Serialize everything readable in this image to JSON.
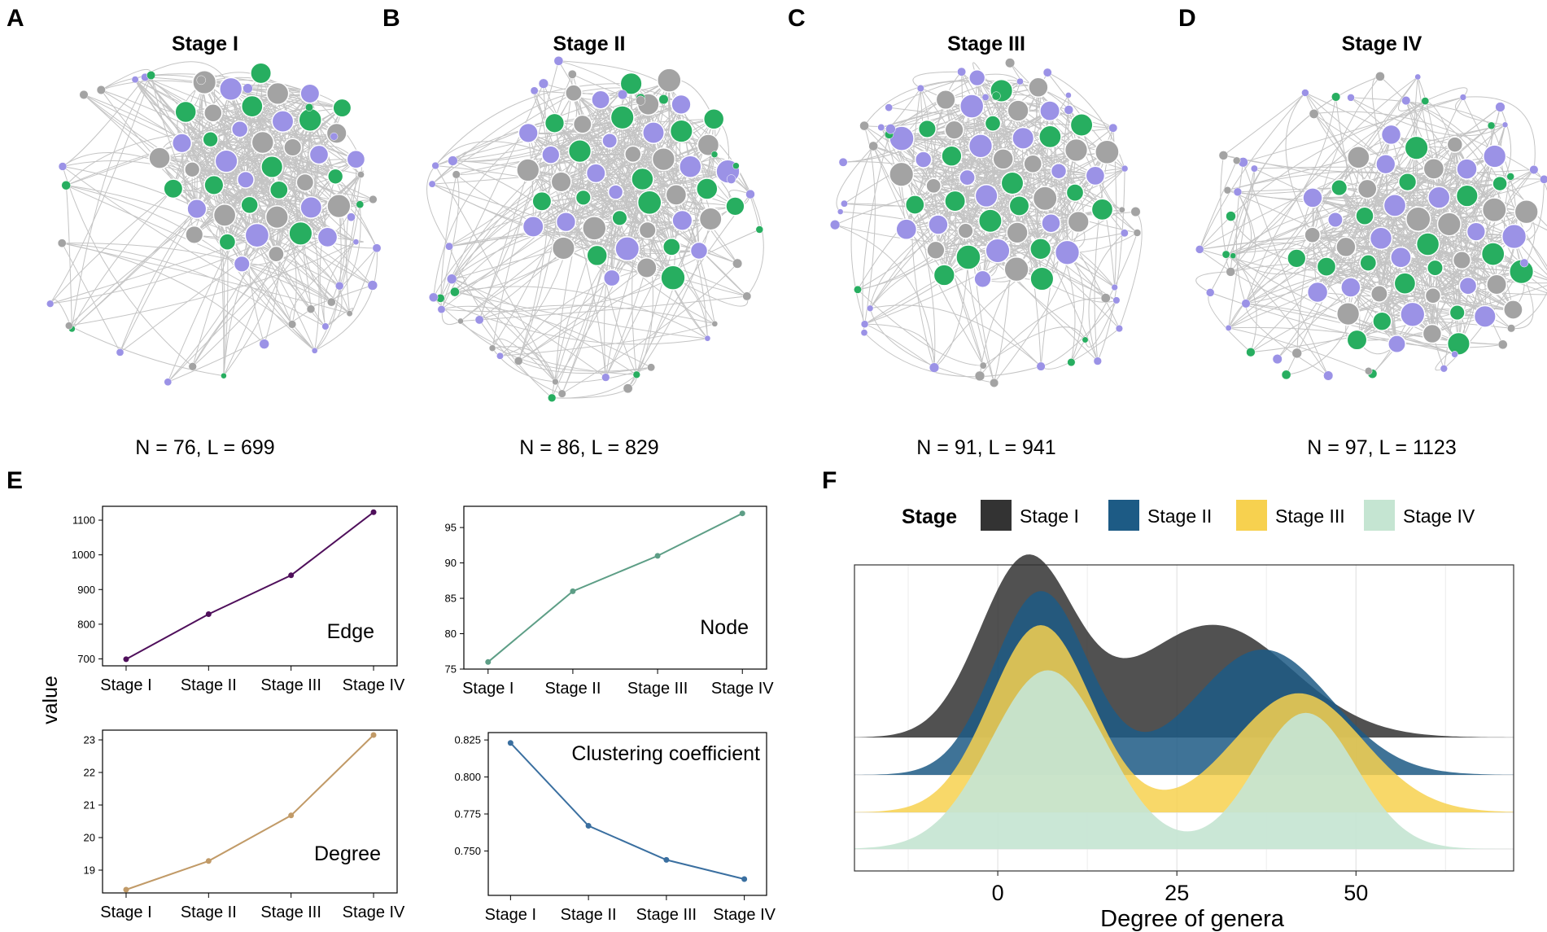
{
  "panel_labels": {
    "A": "A",
    "B": "B",
    "C": "C",
    "D": "D",
    "E": "E",
    "F": "F"
  },
  "networks": [
    {
      "title": "Stage I",
      "nl_label": "N = 76, L = 699",
      "N": 76,
      "L": 699
    },
    {
      "title": "Stage II",
      "nl_label": "N = 86, L = 829",
      "N": 86,
      "L": 829
    },
    {
      "title": "Stage III",
      "nl_label": "N = 91, L = 941",
      "N": 91,
      "L": 941
    },
    {
      "title": "Stage IV",
      "nl_label": "N = 97, L = 1123",
      "N": 97,
      "L": 1123
    }
  ],
  "node_colors": {
    "green": "#27ae60",
    "purple": "#9b92e6",
    "gray": "#a3a3a3"
  },
  "panel_e": {
    "ylabel": "value"
  },
  "chart_data": [
    {
      "type": "line",
      "metric": "Edge",
      "categories": [
        "Stage I",
        "Stage II",
        "Stage III",
        "Stage IV"
      ],
      "values": [
        699,
        829,
        941,
        1123
      ],
      "ylim": [
        680,
        1140
      ],
      "yticks": [
        700,
        800,
        900,
        1000,
        1100
      ],
      "yticklabels": [
        "700",
        "800",
        "900",
        "1000",
        "1100"
      ],
      "color": "#4f0f5b"
    },
    {
      "type": "line",
      "metric": "Node",
      "categories": [
        "Stage I",
        "Stage II",
        "Stage III",
        "Stage IV"
      ],
      "values": [
        76,
        86,
        91,
        97
      ],
      "ylim": [
        75,
        98
      ],
      "yticks": [
        75,
        80,
        85,
        90,
        95
      ],
      "yticklabels": [
        "75",
        "80",
        "85",
        "90",
        "95"
      ],
      "color": "#5d9e86"
    },
    {
      "type": "line",
      "metric": "Degree",
      "categories": [
        "Stage I",
        "Stage II",
        "Stage III",
        "Stage IV"
      ],
      "values": [
        18.4,
        19.28,
        20.68,
        23.15
      ],
      "ylim": [
        18.3,
        23.3
      ],
      "yticks": [
        19,
        20,
        21,
        22,
        23
      ],
      "yticklabels": [
        "19",
        "20",
        "21",
        "22",
        "23"
      ],
      "color": "#c19a67"
    },
    {
      "type": "line",
      "metric": "Clustering coefficient",
      "categories": [
        "Stage I",
        "Stage II",
        "Stage III",
        "Stage IV"
      ],
      "values": [
        0.823,
        0.767,
        0.744,
        0.731
      ],
      "ylim": [
        0.72,
        0.83
      ],
      "yticks": [
        0.75,
        0.775,
        0.8,
        0.825
      ],
      "yticklabels": [
        "0.750",
        "0.775",
        "0.800",
        "0.825"
      ],
      "color": "#3a6fa0"
    },
    {
      "type": "area",
      "subtype": "ridgeline density",
      "title": "",
      "xlabel": "Degree of genera",
      "xlim": [
        -20,
        72
      ],
      "xticks": [
        0,
        25,
        50
      ],
      "xticklabels": [
        "0",
        "25",
        "50"
      ],
      "legend": {
        "title": "Stage",
        "position": "top"
      },
      "series": [
        {
          "name": "Stage I",
          "color": "#333333",
          "components": [
            {
              "weight": 0.48,
              "mean": 4,
              "sd": 6.5
            },
            {
              "weight": 0.52,
              "mean": 30,
              "sd": 11
            }
          ]
        },
        {
          "name": "Stage II",
          "color": "#1d5b85",
          "components": [
            {
              "weight": 0.5,
              "mean": 6,
              "sd": 6.5
            },
            {
              "weight": 0.5,
              "mean": 37,
              "sd": 9.5
            }
          ]
        },
        {
          "name": "Stage III",
          "color": "#f7d14f",
          "components": [
            {
              "weight": 0.55,
              "mean": 6,
              "sd": 7
            },
            {
              "weight": 0.45,
              "mean": 42,
              "sd": 9
            }
          ]
        },
        {
          "name": "Stage IV",
          "color": "#c5e5d2",
          "components": [
            {
              "weight": 0.6,
              "mean": 7,
              "sd": 8
            },
            {
              "weight": 0.4,
              "mean": 43,
              "sd": 7
            }
          ]
        }
      ]
    }
  ]
}
